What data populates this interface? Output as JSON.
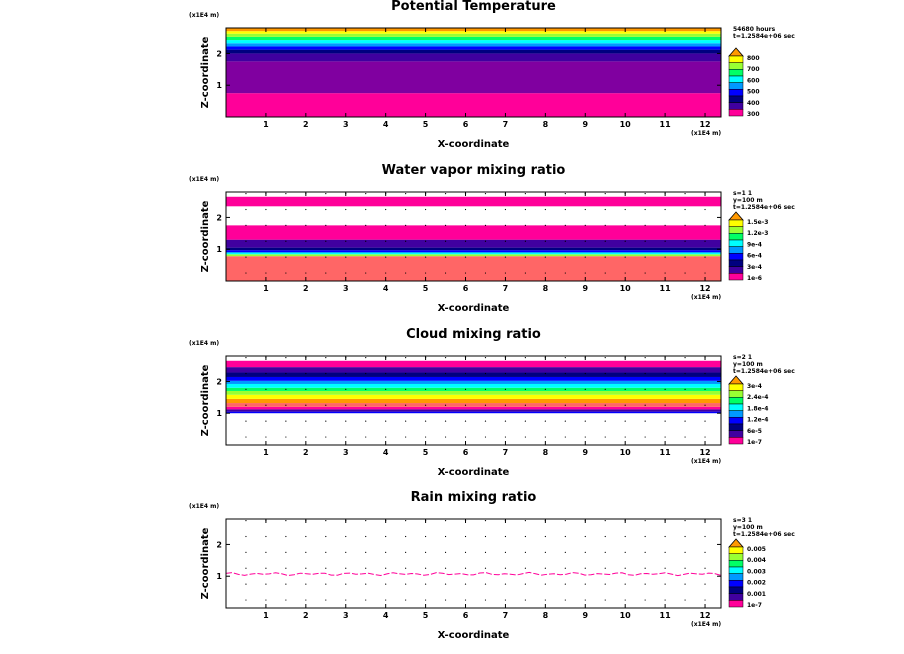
{
  "colors": {
    "magenta": "#ff0099",
    "purple": "#8000a0",
    "indigo": "#4000a0",
    "navy": "#000080",
    "blue": "#0000ff",
    "sky": "#0099ff",
    "cyan": "#00ffff",
    "green": "#00ff66",
    "lime": "#99ff33",
    "yellow": "#ffff00",
    "orange": "#ff9900",
    "salmon": "#ff6666"
  },
  "chart_data": [
    {
      "type": "heatmap",
      "title": "Potential Temperature",
      "xlabel": "X-coordinate",
      "ylabel": "Z-coordinate",
      "x_unit": "(x1E4 m)",
      "y_unit": "(x1E4 m)",
      "xticks": [
        "1",
        "2",
        "3",
        "4",
        "5",
        "6",
        "7",
        "8",
        "9",
        "10",
        "11",
        "12"
      ],
      "yticks": [
        "1",
        "2"
      ],
      "xlim": [
        0,
        12.4
      ],
      "ylim": [
        0,
        2.8
      ],
      "info": [
        "54680 hours",
        "t=1.2584e+06 sec"
      ],
      "colorbar_labels": [
        "300",
        "400",
        "500",
        "600",
        "700",
        "800"
      ],
      "colorbar_colors": [
        "magenta",
        "indigo",
        "navy",
        "blue",
        "sky",
        "cyan",
        "green",
        "lime",
        "yellow",
        "orange"
      ],
      "bands": [
        {
          "z0": 0.0,
          "z1": 0.75,
          "color": "magenta"
        },
        {
          "z0": 0.75,
          "z1": 1.75,
          "color": "purple"
        },
        {
          "z0": 1.75,
          "z1": 2.0,
          "color": "indigo"
        },
        {
          "z0": 2.0,
          "z1": 2.12,
          "color": "navy"
        },
        {
          "z0": 2.12,
          "z1": 2.22,
          "color": "blue"
        },
        {
          "z0": 2.22,
          "z1": 2.32,
          "color": "sky"
        },
        {
          "z0": 2.32,
          "z1": 2.42,
          "color": "cyan"
        },
        {
          "z0": 2.42,
          "z1": 2.52,
          "color": "green"
        },
        {
          "z0": 2.52,
          "z1": 2.62,
          "color": "lime"
        },
        {
          "z0": 2.62,
          "z1": 2.7,
          "color": "yellow"
        },
        {
          "z0": 2.7,
          "z1": 2.8,
          "color": "orange"
        }
      ],
      "grid": false,
      "wavy_line": null
    },
    {
      "type": "heatmap",
      "title": "Water vapor mixing ratio",
      "xlabel": "X-coordinate",
      "ylabel": "Z-coordinate",
      "x_unit": "(x1E4 m)",
      "y_unit": "(x1E4 m)",
      "xticks": [
        "1",
        "2",
        "3",
        "4",
        "5",
        "6",
        "7",
        "8",
        "9",
        "10",
        "11",
        "12"
      ],
      "yticks": [
        "1",
        "2"
      ],
      "xlim": [
        0,
        12.4
      ],
      "ylim": [
        0,
        2.8
      ],
      "info": [
        "s=1 1",
        "y=100 m",
        "t=1.2584e+06 sec"
      ],
      "colorbar_labels": [
        "1e-6",
        "3e-4",
        "6e-4",
        "9e-4",
        "1.2e-3",
        "1.5e-3"
      ],
      "colorbar_colors": [
        "magenta",
        "indigo",
        "navy",
        "blue",
        "sky",
        "cyan",
        "green",
        "lime",
        "yellow",
        "orange"
      ],
      "bands": [
        {
          "z0": 0.0,
          "z1": 0.78,
          "color": "salmon"
        },
        {
          "z0": 0.78,
          "z1": 0.84,
          "color": "lime"
        },
        {
          "z0": 0.84,
          "z1": 0.9,
          "color": "cyan"
        },
        {
          "z0": 0.9,
          "z1": 0.97,
          "color": "blue"
        },
        {
          "z0": 0.97,
          "z1": 1.05,
          "color": "navy"
        },
        {
          "z0": 1.05,
          "z1": 1.3,
          "color": "indigo"
        },
        {
          "z0": 1.3,
          "z1": 1.75,
          "color": "magenta"
        },
        {
          "z0": 2.35,
          "z1": 2.65,
          "color": "magenta"
        }
      ],
      "grid": true,
      "wavy_line": null
    },
    {
      "type": "heatmap",
      "title": "Cloud mixing ratio",
      "xlabel": "X-coordinate",
      "ylabel": "Z-coordinate",
      "x_unit": "(x1E4 m)",
      "y_unit": "(x1E4 m)",
      "xticks": [
        "1",
        "2",
        "3",
        "4",
        "5",
        "6",
        "7",
        "8",
        "9",
        "10",
        "11",
        "12"
      ],
      "yticks": [
        "1",
        "2"
      ],
      "xlim": [
        0,
        12.4
      ],
      "ylim": [
        0,
        2.8
      ],
      "info": [
        "s=2 1",
        "y=100 m",
        "t=1.2584e+06 sec"
      ],
      "colorbar_labels": [
        "1e-7",
        "6e-5",
        "1.2e-4",
        "1.8e-4",
        "2.4e-4",
        "3e-4"
      ],
      "colorbar_colors": [
        "magenta",
        "indigo",
        "navy",
        "blue",
        "sky",
        "cyan",
        "green",
        "lime",
        "yellow",
        "orange"
      ],
      "bands": [
        {
          "z0": 1.0,
          "z1": 1.05,
          "color": "blue"
        },
        {
          "z0": 1.05,
          "z1": 1.12,
          "color": "indigo"
        },
        {
          "z0": 1.12,
          "z1": 1.2,
          "color": "magenta"
        },
        {
          "z0": 1.2,
          "z1": 1.32,
          "color": "salmon"
        },
        {
          "z0": 1.32,
          "z1": 1.45,
          "color": "orange"
        },
        {
          "z0": 1.45,
          "z1": 1.58,
          "color": "yellow"
        },
        {
          "z0": 1.58,
          "z1": 1.7,
          "color": "lime"
        },
        {
          "z0": 1.7,
          "z1": 1.8,
          "color": "green"
        },
        {
          "z0": 1.8,
          "z1": 1.92,
          "color": "cyan"
        },
        {
          "z0": 1.92,
          "z1": 2.02,
          "color": "sky"
        },
        {
          "z0": 2.02,
          "z1": 2.14,
          "color": "blue"
        },
        {
          "z0": 2.14,
          "z1": 2.28,
          "color": "navy"
        },
        {
          "z0": 2.28,
          "z1": 2.45,
          "color": "indigo"
        },
        {
          "z0": 2.45,
          "z1": 2.65,
          "color": "magenta"
        }
      ],
      "grid": true,
      "wavy_line": null
    },
    {
      "type": "heatmap",
      "title": "Rain mixing ratio",
      "xlabel": "X-coordinate",
      "ylabel": "Z-coordinate",
      "x_unit": "(x1E4 m)",
      "y_unit": "(x1E4 m)",
      "xticks": [
        "1",
        "2",
        "3",
        "4",
        "5",
        "6",
        "7",
        "8",
        "9",
        "10",
        "11",
        "12"
      ],
      "yticks": [
        "1",
        "2"
      ],
      "xlim": [
        0,
        12.4
      ],
      "ylim": [
        0,
        2.8
      ],
      "info": [
        "s=3 1",
        "y=100 m",
        "t=1.2584e+06 sec"
      ],
      "colorbar_labels": [
        "1e-7",
        "0.001",
        "0.002",
        "0.003",
        "0.004",
        "0.005"
      ],
      "colorbar_colors": [
        "magenta",
        "indigo",
        "navy",
        "blue",
        "sky",
        "cyan",
        "green",
        "lime",
        "yellow",
        "orange"
      ],
      "bands": [],
      "grid": true,
      "wavy_line": {
        "z": 1.07,
        "color": "magenta"
      }
    }
  ]
}
